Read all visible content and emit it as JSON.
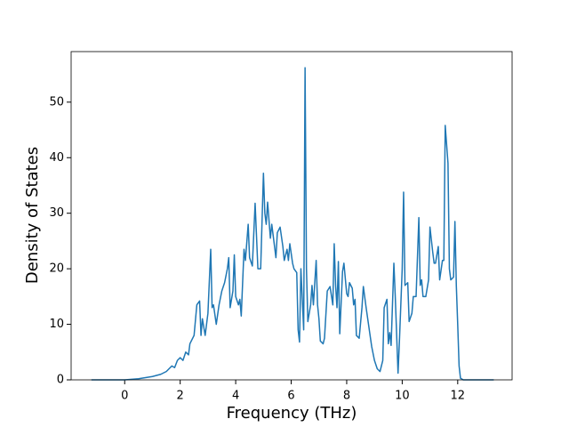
{
  "chart_data": {
    "type": "line",
    "x_label": "Frequency (THz)",
    "y_label": "Density of States",
    "x": [
      -1.2,
      -0.5,
      0,
      0.5,
      1.0,
      1.3,
      1.5,
      1.7,
      1.8,
      1.9,
      2.0,
      2.1,
      2.2,
      2.3,
      2.35,
      2.5,
      2.6,
      2.7,
      2.75,
      2.8,
      2.9,
      3.0,
      3.1,
      3.15,
      3.2,
      3.3,
      3.4,
      3.5,
      3.6,
      3.7,
      3.75,
      3.8,
      3.9,
      3.95,
      4.0,
      4.1,
      4.15,
      4.2,
      4.3,
      4.35,
      4.45,
      4.5,
      4.6,
      4.7,
      4.8,
      4.9,
      5.0,
      5.05,
      5.1,
      5.15,
      5.25,
      5.3,
      5.4,
      5.45,
      5.5,
      5.6,
      5.7,
      5.75,
      5.85,
      5.9,
      5.95,
      6.05,
      6.1,
      6.2,
      6.25,
      6.3,
      6.35,
      6.45,
      6.5,
      6.55,
      6.6,
      6.7,
      6.75,
      6.8,
      6.9,
      6.95,
      7.0,
      7.05,
      7.15,
      7.2,
      7.3,
      7.4,
      7.5,
      7.55,
      7.6,
      7.65,
      7.7,
      7.75,
      7.85,
      7.9,
      8.0,
      8.05,
      8.1,
      8.2,
      8.25,
      8.3,
      8.35,
      8.45,
      8.55,
      8.6,
      8.7,
      8.8,
      8.9,
      9.0,
      9.1,
      9.2,
      9.3,
      9.35,
      9.45,
      9.5,
      9.55,
      9.6,
      9.7,
      9.75,
      9.85,
      9.9,
      10.0,
      10.05,
      10.1,
      10.2,
      10.25,
      10.35,
      10.4,
      10.5,
      10.6,
      10.65,
      10.7,
      10.75,
      10.85,
      10.95,
      11.0,
      11.1,
      11.15,
      11.2,
      11.3,
      11.35,
      11.45,
      11.5,
      11.55,
      11.65,
      11.7,
      11.75,
      11.85,
      11.9,
      11.95,
      12.0,
      12.05,
      12.1,
      12.2,
      13.3
    ],
    "series": [
      {
        "color": "#1f77b4",
        "values": [
          0,
          0,
          0,
          0.2,
          0.6,
          1.0,
          1.5,
          2.5,
          2.2,
          3.5,
          4,
          3.5,
          5,
          4.5,
          6.5,
          8,
          13.5,
          14.2,
          8,
          11,
          8,
          12,
          23.5,
          13,
          13.5,
          10,
          13.5,
          16,
          17.5,
          20,
          22,
          13,
          16,
          22.5,
          15,
          13.5,
          14.5,
          11.5,
          23.5,
          21.5,
          28,
          22,
          20.5,
          31.8,
          20,
          20,
          37.2,
          30,
          28,
          32,
          25.5,
          28,
          24,
          22,
          26.5,
          27.5,
          24,
          21.5,
          23.5,
          21.5,
          24.5,
          21,
          20,
          19.3,
          9,
          6.8,
          20,
          9,
          56.2,
          20,
          10.5,
          13.5,
          17,
          13.5,
          21.5,
          13.5,
          11,
          7,
          6.5,
          7.5,
          16,
          16.8,
          13.5,
          24.5,
          17,
          13,
          21.3,
          8.3,
          19.5,
          21,
          15.5,
          15,
          17.5,
          16.5,
          13.5,
          14.5,
          8,
          7.5,
          13,
          16.8,
          13,
          9.5,
          6,
          3.5,
          2,
          1.5,
          3.5,
          13,
          14.5,
          6.5,
          8.5,
          6.2,
          21,
          15,
          1.2,
          7,
          20,
          33.8,
          17,
          17.5,
          10.5,
          12,
          15,
          15,
          29.2,
          17,
          18,
          15,
          15,
          18,
          27.5,
          23,
          21,
          21,
          24,
          18,
          21.5,
          21.5,
          45.8,
          39,
          20,
          18,
          18.5,
          28.5,
          17,
          10,
          2.5,
          0.3,
          0,
          0
        ]
      }
    ],
    "xlim": [
      -1.93,
      13.96
    ],
    "ylim": [
      0,
      59.1
    ],
    "xticks": [
      0,
      2,
      4,
      6,
      8,
      10,
      12
    ],
    "yticks": [
      0,
      10,
      20,
      30,
      40,
      50
    ]
  }
}
